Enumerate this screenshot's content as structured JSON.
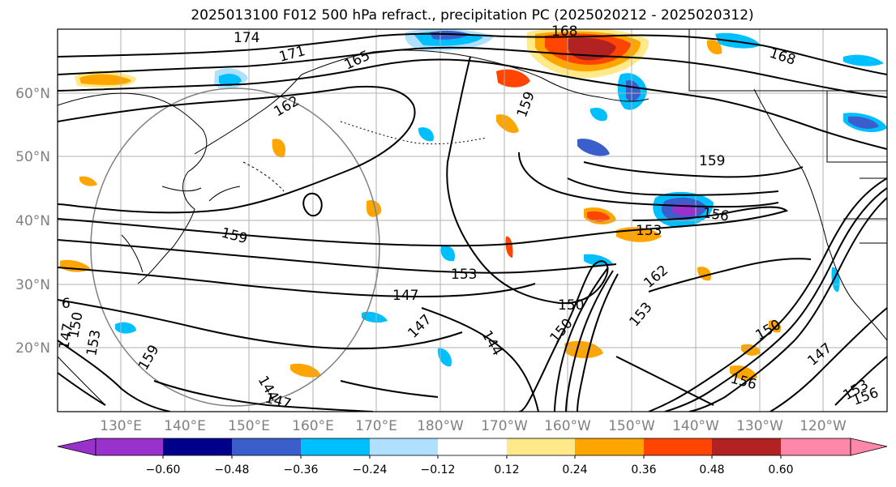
{
  "title": "2025013100 F012 500 hPa refract., precipitation PC (2025020212 - 2025020312)",
  "map": {
    "lat_labels": [
      "60°N",
      "50°N",
      "40°N",
      "30°N",
      "20°N"
    ],
    "lon_labels": [
      "130°E",
      "140°E",
      "150°E",
      "160°E",
      "170°E",
      "180°W",
      "170°W",
      "160°W",
      "150°W",
      "140°W",
      "130°W",
      "120°W"
    ],
    "contour_labels": [
      "174",
      "171",
      "165",
      "168",
      "168",
      "162",
      "159",
      "159",
      "156",
      "153",
      "159",
      "153",
      "147",
      "150",
      "147",
      "144",
      "162",
      "150",
      "153",
      "156",
      "147",
      "153",
      "156",
      "150",
      "147",
      "159",
      "147",
      "144",
      "150",
      "153",
      "6"
    ],
    "contour_color": "#000000",
    "coast_color": "#000000",
    "grid_color": "#b0b0b0",
    "disk_color": "#808080"
  },
  "colorbar": {
    "ticks": [
      "−0.60",
      "−0.48",
      "−0.36",
      "−0.24",
      "−0.12",
      "0.12",
      "0.24",
      "0.36",
      "0.48",
      "0.60"
    ],
    "colors": [
      "#9932cc",
      "#00008b",
      "#3a5ecc",
      "#00bfff",
      "#b0e0ff",
      "#ffffff",
      "#ffe989",
      "#ffa500",
      "#ff4500",
      "#b22222",
      "#ff88aa"
    ]
  }
}
